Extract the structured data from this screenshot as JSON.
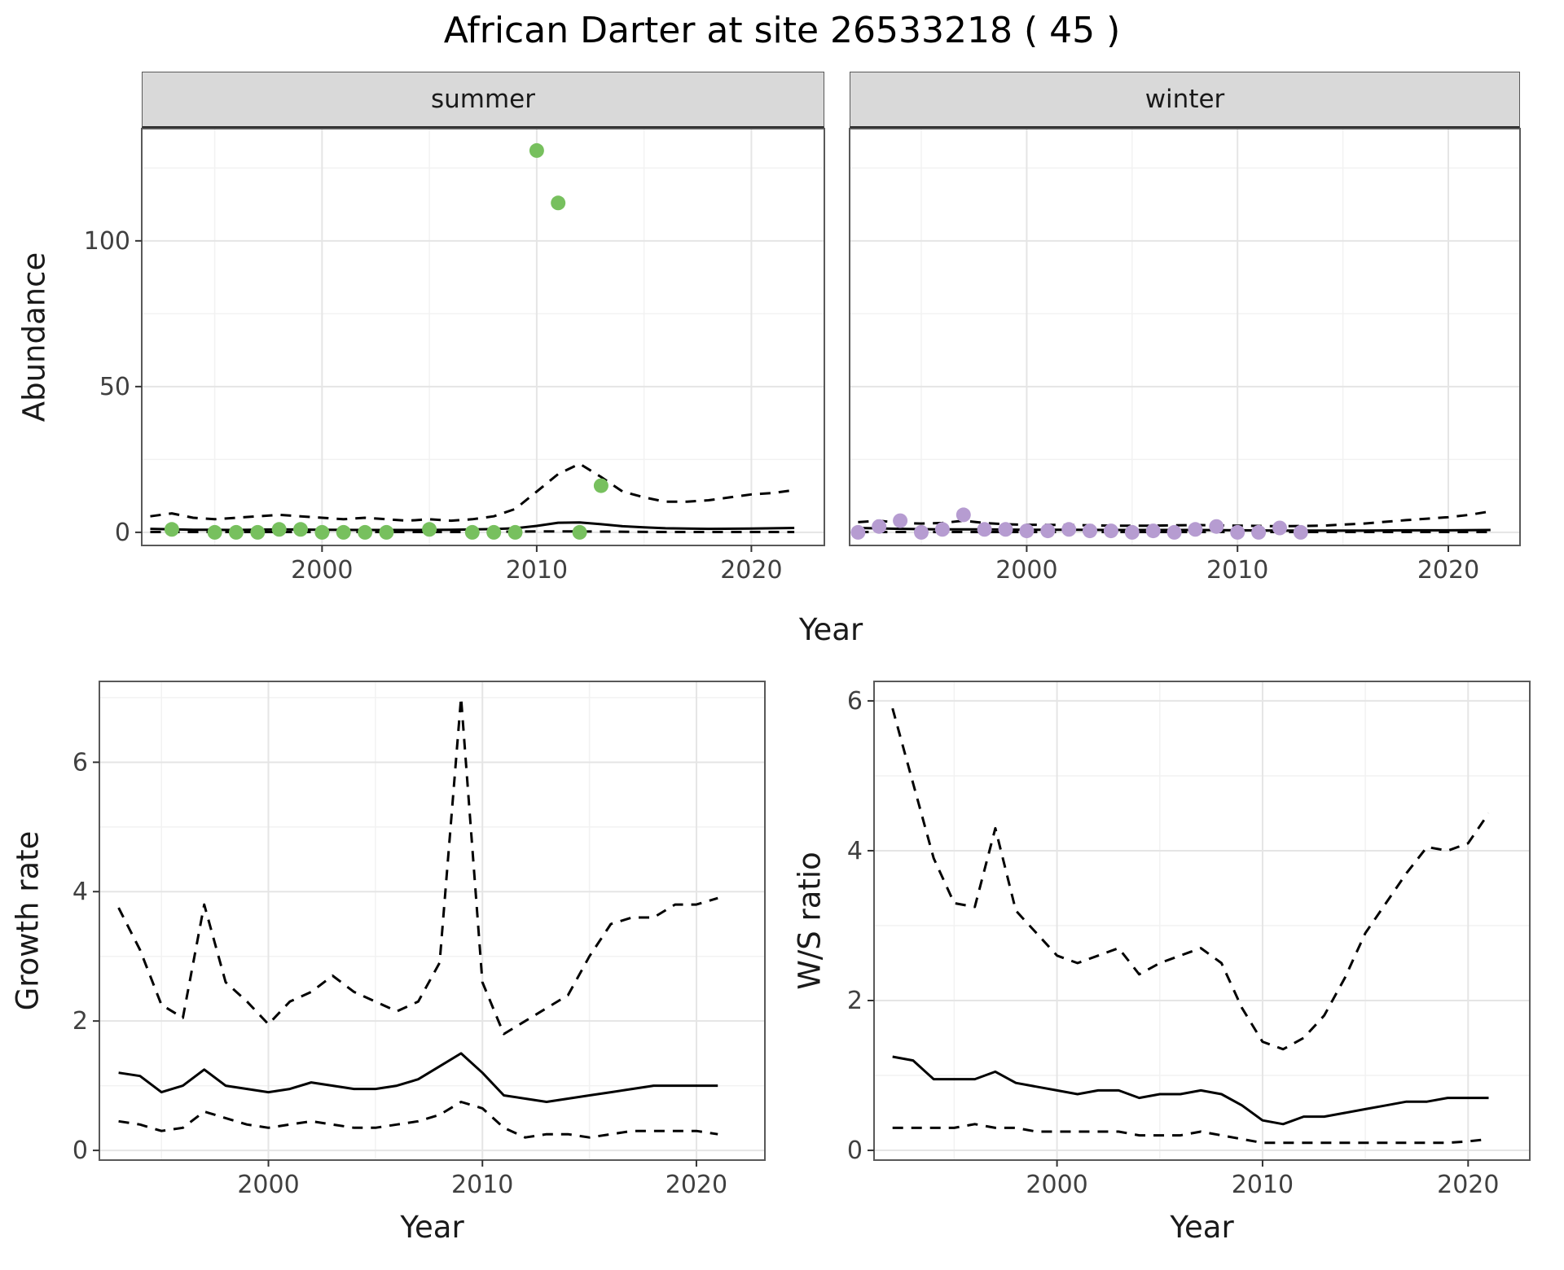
{
  "title": "African Darter at site 26533218 ( 45 )",
  "axis_labels": {
    "abundance": "Abundance",
    "growth_rate": "Growth rate",
    "ws_ratio": "W/S ratio",
    "year_top": "Year",
    "year_bottom_left": "Year",
    "year_bottom_right": "Year"
  },
  "facets": {
    "summer": "summer",
    "winter": "winter"
  },
  "colors": {
    "summer_point": "#77c05e",
    "winter_point": "#b69cd1",
    "line": "#000000",
    "strip_bg": "#d9d9d9",
    "strip_border": "#2b2b2b",
    "panel_border": "#595959",
    "grid_major": "#e5e5e5",
    "grid_minor": "#f2f2f2",
    "tick_mark": "#333333",
    "tick_text": "#404040",
    "text": "#1a1a1a"
  },
  "chart_data": [
    {
      "name": "abundance-summer",
      "type": "scatter",
      "facet": "summer",
      "xlabel": "Year",
      "ylabel": "Abundance",
      "xlim": [
        1991.6,
        2023.4
      ],
      "ylim": [
        -4.5,
        138.5
      ],
      "xticks": [
        2000,
        2010,
        2020
      ],
      "yticks": [
        0,
        50,
        100
      ],
      "point_color": "#77c05e",
      "points": {
        "x": [
          1993,
          1995,
          1996,
          1997,
          1998,
          1999,
          2000,
          2001,
          2002,
          2003,
          2005,
          2007,
          2008,
          2009,
          2010,
          2011,
          2012,
          2013
        ],
        "y": [
          1,
          0,
          0,
          0,
          1,
          1,
          0,
          0,
          0,
          0,
          1,
          0,
          0,
          0,
          131,
          113,
          0,
          16
        ]
      },
      "series": [
        {
          "name": "fit",
          "style": "solid",
          "x": [
            1992,
            1994,
            1996,
            1998,
            2000,
            2002,
            2004,
            2006,
            2008,
            2009,
            2010,
            2011,
            2012,
            2013,
            2014,
            2015,
            2016,
            2018,
            2020,
            2022
          ],
          "y": [
            1.2,
            0.9,
            0.8,
            1.0,
            0.9,
            0.8,
            0.8,
            0.9,
            1.1,
            1.4,
            2.2,
            3.3,
            3.4,
            2.8,
            2.1,
            1.7,
            1.4,
            1.2,
            1.3,
            1.5
          ]
        },
        {
          "name": "upper-ci",
          "style": "dashed",
          "x": [
            1992,
            1993,
            1994,
            1995,
            1996,
            1997,
            1998,
            1999,
            2000,
            2001,
            2002,
            2003,
            2004,
            2005,
            2006,
            2007,
            2008,
            2009,
            2010,
            2011,
            2012,
            2013,
            2014,
            2015,
            2016,
            2017,
            2018,
            2019,
            2020,
            2021,
            2022
          ],
          "y": [
            5.5,
            6.5,
            5.0,
            4.5,
            5.0,
            5.5,
            6.0,
            5.5,
            5.0,
            4.5,
            5.0,
            4.5,
            4.0,
            4.5,
            4.0,
            4.5,
            5.5,
            8.0,
            14.0,
            20.0,
            23.5,
            19.0,
            14.0,
            12.0,
            10.5,
            10.5,
            11.0,
            12.0,
            13.0,
            13.5,
            14.5
          ]
        },
        {
          "name": "lower-ci",
          "style": "dashed",
          "x": [
            1992,
            1997,
            2002,
            2007,
            2010,
            2012,
            2016,
            2022
          ],
          "y": [
            0.1,
            0.1,
            0.1,
            0.1,
            0.3,
            0.3,
            0.1,
            0.1
          ]
        }
      ]
    },
    {
      "name": "abundance-winter",
      "type": "scatter",
      "facet": "winter",
      "xlabel": "Year",
      "ylabel": "Abundance",
      "xlim": [
        1991.6,
        2023.4
      ],
      "ylim": [
        -4.5,
        138.5
      ],
      "xticks": [
        2000,
        2010,
        2020
      ],
      "yticks": [
        0,
        50,
        100
      ],
      "point_color": "#b69cd1",
      "points": {
        "x": [
          1992,
          1993,
          1994,
          1995,
          1996,
          1997,
          1998,
          1999,
          2000,
          2001,
          2002,
          2003,
          2004,
          2005,
          2006,
          2007,
          2008,
          2009,
          2010,
          2011,
          2012,
          2013
        ],
        "y": [
          0,
          2,
          4,
          0,
          1,
          6,
          1,
          1,
          0.5,
          0.5,
          1,
          0.5,
          0.5,
          0,
          0.5,
          0,
          1,
          2,
          0,
          0,
          1.5,
          0
        ]
      },
      "series": [
        {
          "name": "fit",
          "style": "solid",
          "x": [
            1992,
            1994,
            1996,
            1998,
            2000,
            2002,
            2004,
            2006,
            2008,
            2010,
            2012,
            2014,
            2016,
            2018,
            2020,
            2022
          ],
          "y": [
            1.5,
            1.2,
            1.0,
            1.0,
            0.9,
            0.9,
            0.8,
            0.8,
            0.8,
            0.7,
            0.6,
            0.6,
            0.6,
            0.7,
            0.7,
            0.8
          ]
        },
        {
          "name": "upper-ci",
          "style": "dashed",
          "x": [
            1992,
            1993,
            1994,
            1995,
            1996,
            1997,
            1998,
            1999,
            2000,
            2002,
            2004,
            2006,
            2008,
            2010,
            2012,
            2014,
            2016,
            2018,
            2019,
            2020,
            2021,
            2022
          ],
          "y": [
            3.5,
            4.0,
            3.2,
            3.0,
            3.2,
            4.0,
            3.2,
            2.8,
            2.6,
            2.5,
            2.3,
            2.3,
            2.5,
            2.3,
            2.1,
            2.3,
            3.0,
            4.2,
            4.7,
            5.2,
            6.0,
            7.2
          ]
        },
        {
          "name": "lower-ci",
          "style": "dashed",
          "x": [
            1992,
            1997,
            2002,
            2007,
            2012,
            2017,
            2022
          ],
          "y": [
            0.1,
            0.1,
            0.1,
            0.1,
            0.1,
            0.1,
            0.1
          ]
        }
      ]
    },
    {
      "name": "growth-rate",
      "type": "line",
      "xlabel": "Year",
      "ylabel": "Growth rate",
      "xlim": [
        1992.1,
        2023.2
      ],
      "ylim": [
        -0.15,
        7.25
      ],
      "xticks": [
        2000,
        2010,
        2020
      ],
      "yticks": [
        0,
        2,
        4,
        6
      ],
      "series": [
        {
          "name": "fit",
          "style": "solid",
          "x": [
            1993,
            1994,
            1995,
            1996,
            1997,
            1998,
            1999,
            2000,
            2001,
            2002,
            2003,
            2004,
            2005,
            2006,
            2007,
            2008,
            2009,
            2010,
            2011,
            2012,
            2013,
            2014,
            2015,
            2016,
            2017,
            2018,
            2019,
            2020,
            2021
          ],
          "y": [
            1.2,
            1.15,
            0.9,
            1.0,
            1.25,
            1.0,
            0.95,
            0.9,
            0.95,
            1.05,
            1.0,
            0.95,
            0.95,
            1.0,
            1.1,
            1.3,
            1.5,
            1.2,
            0.85,
            0.8,
            0.75,
            0.8,
            0.85,
            0.9,
            0.95,
            1.0,
            1.0,
            1.0,
            1.0
          ]
        },
        {
          "name": "upper-ci",
          "style": "dashed",
          "x": [
            1993,
            1994,
            1995,
            1996,
            1997,
            1998,
            1999,
            2000,
            2001,
            2002,
            2003,
            2004,
            2005,
            2006,
            2007,
            2008,
            2009,
            2010,
            2011,
            2012,
            2013,
            2014,
            2015,
            2016,
            2017,
            2018,
            2019,
            2020,
            2021
          ],
          "y": [
            3.75,
            3.1,
            2.25,
            2.05,
            3.8,
            2.6,
            2.3,
            1.95,
            2.3,
            2.45,
            2.7,
            2.45,
            2.3,
            2.15,
            2.3,
            2.9,
            7.0,
            2.6,
            1.8,
            2.0,
            2.2,
            2.4,
            3.0,
            3.5,
            3.6,
            3.6,
            3.8,
            3.8,
            3.9
          ]
        },
        {
          "name": "lower-ci",
          "style": "dashed",
          "x": [
            1993,
            1994,
            1995,
            1996,
            1997,
            1998,
            1999,
            2000,
            2001,
            2002,
            2003,
            2004,
            2005,
            2006,
            2007,
            2008,
            2009,
            2010,
            2011,
            2012,
            2013,
            2014,
            2015,
            2016,
            2017,
            2018,
            2019,
            2020,
            2021
          ],
          "y": [
            0.45,
            0.4,
            0.3,
            0.35,
            0.6,
            0.5,
            0.4,
            0.35,
            0.4,
            0.45,
            0.4,
            0.35,
            0.35,
            0.4,
            0.45,
            0.55,
            0.75,
            0.65,
            0.35,
            0.2,
            0.25,
            0.25,
            0.2,
            0.25,
            0.3,
            0.3,
            0.3,
            0.3,
            0.25
          ]
        }
      ]
    },
    {
      "name": "ws-ratio",
      "type": "line",
      "xlabel": "Year",
      "ylabel": "W/S ratio",
      "xlim": [
        1991.1,
        2023.0
      ],
      "ylim": [
        -0.13,
        6.26
      ],
      "xticks": [
        2000,
        2010,
        2020
      ],
      "yticks": [
        0,
        2,
        4,
        6
      ],
      "series": [
        {
          "name": "fit",
          "style": "solid",
          "x": [
            1992,
            1993,
            1994,
            1995,
            1996,
            1997,
            1998,
            1999,
            2000,
            2001,
            2002,
            2003,
            2004,
            2005,
            2006,
            2007,
            2008,
            2009,
            2010,
            2011,
            2012,
            2013,
            2014,
            2015,
            2016,
            2017,
            2018,
            2019,
            2020,
            2021
          ],
          "y": [
            1.25,
            1.2,
            0.95,
            0.95,
            0.95,
            1.05,
            0.9,
            0.85,
            0.8,
            0.75,
            0.8,
            0.8,
            0.7,
            0.75,
            0.75,
            0.8,
            0.75,
            0.6,
            0.4,
            0.35,
            0.45,
            0.45,
            0.5,
            0.55,
            0.6,
            0.65,
            0.65,
            0.7,
            0.7,
            0.7
          ]
        },
        {
          "name": "upper-ci",
          "style": "dashed",
          "x": [
            1992,
            1993,
            1994,
            1995,
            1996,
            1997,
            1998,
            1999,
            2000,
            2001,
            2002,
            2003,
            2004,
            2005,
            2006,
            2007,
            2008,
            2009,
            2010,
            2011,
            2012,
            2013,
            2014,
            2015,
            2016,
            2017,
            2018,
            2019,
            2020,
            2021
          ],
          "y": [
            5.9,
            4.9,
            3.9,
            3.3,
            3.25,
            4.3,
            3.2,
            2.9,
            2.6,
            2.5,
            2.6,
            2.7,
            2.35,
            2.5,
            2.6,
            2.7,
            2.5,
            1.9,
            1.45,
            1.35,
            1.5,
            1.8,
            2.3,
            2.9,
            3.3,
            3.7,
            4.05,
            4.0,
            4.1,
            4.5
          ]
        },
        {
          "name": "lower-ci",
          "style": "dashed",
          "x": [
            1992,
            1993,
            1994,
            1995,
            1996,
            1997,
            1998,
            1999,
            2000,
            2001,
            2002,
            2003,
            2004,
            2005,
            2006,
            2007,
            2008,
            2009,
            2010,
            2011,
            2012,
            2013,
            2014,
            2015,
            2016,
            2017,
            2018,
            2019,
            2020,
            2021
          ],
          "y": [
            0.3,
            0.3,
            0.3,
            0.3,
            0.35,
            0.3,
            0.3,
            0.25,
            0.25,
            0.25,
            0.25,
            0.25,
            0.2,
            0.2,
            0.2,
            0.25,
            0.2,
            0.15,
            0.1,
            0.1,
            0.1,
            0.1,
            0.1,
            0.1,
            0.1,
            0.1,
            0.1,
            0.1,
            0.12,
            0.15
          ]
        }
      ]
    }
  ]
}
